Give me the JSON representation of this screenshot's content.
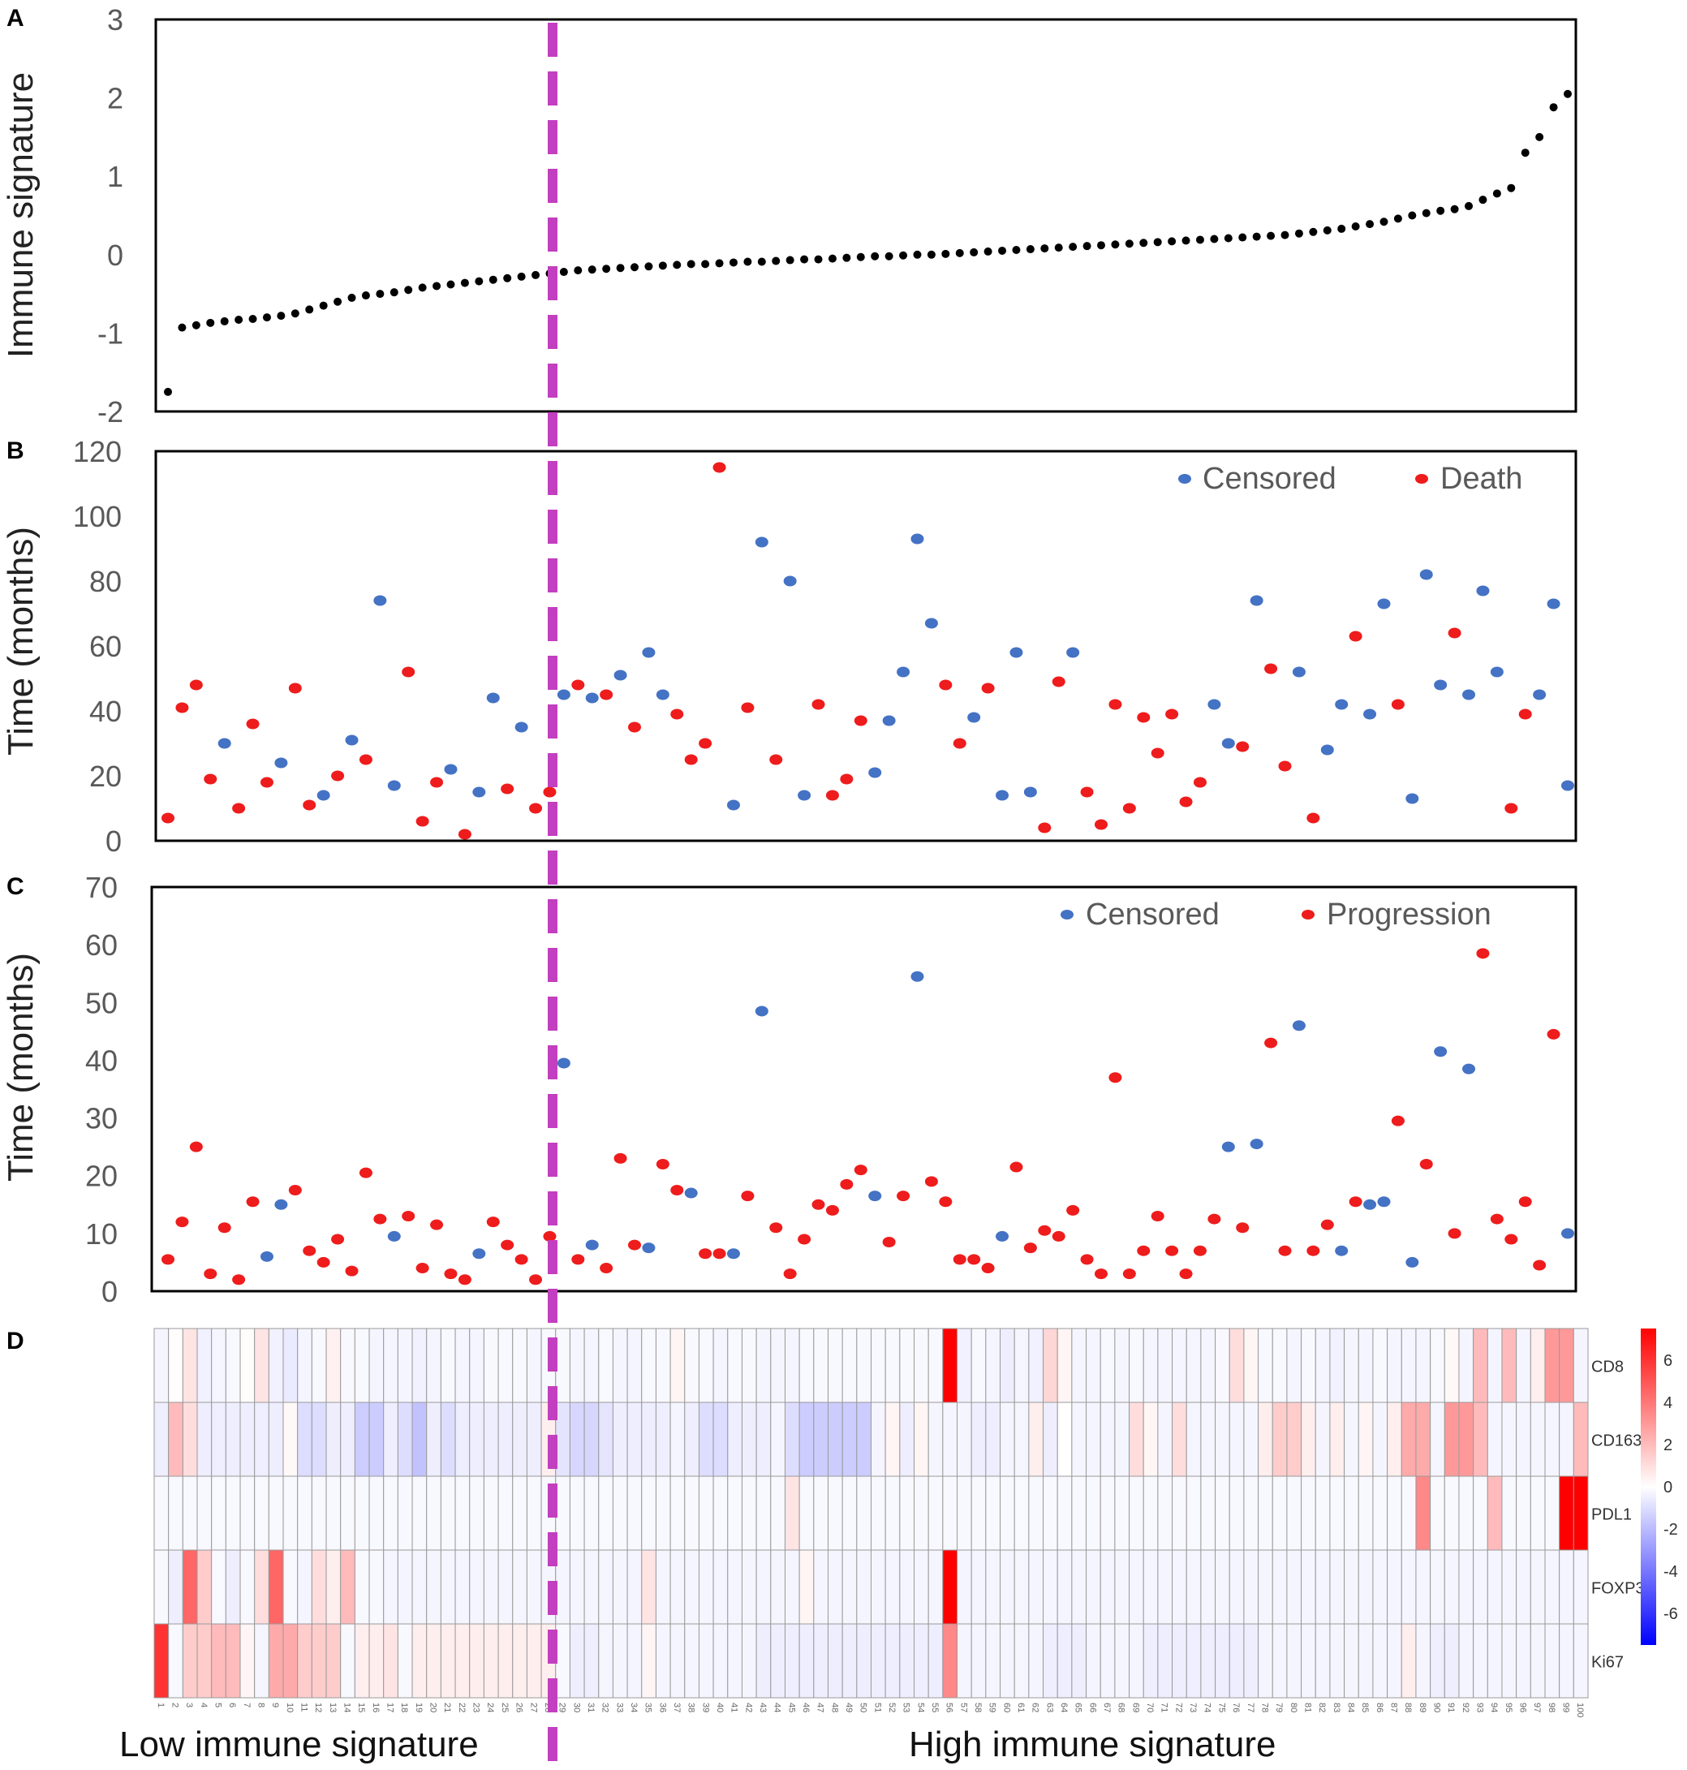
{
  "colors": {
    "censored": "#4472c4",
    "event": "#ee1c1c",
    "divider": "#c23fbf",
    "signature_point": "#000000",
    "heat_high": "#ff0000",
    "heat_mid": "#ffffff",
    "heat_low": "#0000ff"
  },
  "chart_data": [
    {
      "panel": "A",
      "type": "scatter",
      "ylabel": "Immune signature",
      "ylim": [
        -2,
        3
      ],
      "yticks": [
        "3",
        "2",
        "1",
        "0",
        "-1",
        "-2"
      ],
      "x": "patient rank 1-100",
      "values": [
        -1.75,
        -0.93,
        -0.9,
        -0.87,
        -0.85,
        -0.83,
        -0.82,
        -0.8,
        -0.78,
        -0.75,
        -0.7,
        -0.65,
        -0.6,
        -0.55,
        -0.52,
        -0.5,
        -0.48,
        -0.45,
        -0.42,
        -0.4,
        -0.38,
        -0.36,
        -0.34,
        -0.32,
        -0.3,
        -0.28,
        -0.26,
        -0.24,
        -0.22,
        -0.2,
        -0.19,
        -0.18,
        -0.17,
        -0.16,
        -0.15,
        -0.14,
        -0.13,
        -0.12,
        -0.12,
        -0.11,
        -0.1,
        -0.09,
        -0.09,
        -0.08,
        -0.07,
        -0.06,
        -0.06,
        -0.05,
        -0.04,
        -0.03,
        -0.02,
        -0.02,
        -0.01,
        0,
        0,
        0.01,
        0.02,
        0.03,
        0.04,
        0.05,
        0.06,
        0.07,
        0.08,
        0.09,
        0.1,
        0.11,
        0.12,
        0.13,
        0.14,
        0.15,
        0.16,
        0.17,
        0.18,
        0.19,
        0.2,
        0.21,
        0.22,
        0.23,
        0.24,
        0.25,
        0.27,
        0.29,
        0.31,
        0.33,
        0.36,
        0.39,
        0.42,
        0.46,
        0.5,
        0.53,
        0.56,
        0.58,
        0.62,
        0.7,
        0.78,
        0.85,
        1.3,
        1.5,
        1.88,
        2.05
      ]
    },
    {
      "panel": "B",
      "type": "scatter",
      "ylabel": "Time (months)",
      "ylim": [
        0,
        120
      ],
      "yticks": [
        "120",
        "100",
        "80",
        "60",
        "40",
        "20",
        "0"
      ],
      "legend": [
        "Censored",
        "Death"
      ],
      "legend_position": "top-right",
      "values": [
        7,
        41,
        48,
        19,
        30,
        10,
        36,
        18,
        24,
        47,
        11,
        14,
        20,
        31,
        25,
        74,
        17,
        52,
        6,
        18,
        22,
        2,
        15,
        44,
        16,
        35,
        10,
        15,
        45,
        48,
        44,
        45,
        51,
        35,
        58,
        45,
        39,
        25,
        30,
        115,
        11,
        41,
        92,
        25,
        80,
        14,
        42,
        14,
        19,
        37,
        21,
        37,
        52,
        93,
        67,
        48,
        30,
        38,
        47,
        14,
        58,
        15,
        4,
        49,
        58,
        15,
        5,
        42,
        10,
        38,
        27,
        39,
        12,
        18,
        42,
        30,
        29,
        74,
        53,
        23,
        52,
        7,
        28,
        42,
        63,
        39,
        73,
        42,
        13,
        82,
        48,
        64,
        45,
        77,
        52,
        10,
        39,
        45,
        73,
        17
      ],
      "status": [
        "E",
        "E",
        "E",
        "E",
        "C",
        "E",
        "E",
        "E",
        "C",
        "E",
        "E",
        "C",
        "E",
        "C",
        "E",
        "C",
        "C",
        "E",
        "E",
        "E",
        "C",
        "E",
        "C",
        "C",
        "E",
        "C",
        "E",
        "E",
        "C",
        "E",
        "C",
        "E",
        "C",
        "E",
        "C",
        "C",
        "E",
        "E",
        "E",
        "E",
        "C",
        "E",
        "C",
        "E",
        "C",
        "C",
        "E",
        "E",
        "E",
        "E",
        "C",
        "C",
        "C",
        "C",
        "C",
        "E",
        "E",
        "C",
        "E",
        "C",
        "C",
        "C",
        "E",
        "E",
        "C",
        "E",
        "E",
        "E",
        "E",
        "E",
        "E",
        "E",
        "E",
        "E",
        "C",
        "C",
        "E",
        "C",
        "E",
        "E",
        "C",
        "E",
        "C",
        "C",
        "E",
        "C",
        "C",
        "E",
        "C",
        "C",
        "C",
        "E",
        "C",
        "C",
        "C",
        "E",
        "E",
        "C",
        "C",
        "C"
      ]
    },
    {
      "panel": "C",
      "type": "scatter",
      "ylabel": "Time (months)",
      "ylim": [
        0,
        70
      ],
      "yticks": [
        "70",
        "60",
        "50",
        "40",
        "30",
        "20",
        "10",
        "0"
      ],
      "legend": [
        "Censored",
        "Progression"
      ],
      "legend_position": "top-right",
      "values": [
        5.5,
        12,
        25,
        3,
        11,
        2,
        15.5,
        6,
        15,
        17.5,
        7,
        5,
        9,
        3.5,
        20.5,
        12.5,
        9.5,
        13,
        4,
        11.5,
        3,
        2,
        6.5,
        12,
        8,
        5.5,
        2,
        9.5,
        39.5,
        5.5,
        8,
        4,
        23,
        8,
        7.5,
        22,
        17.5,
        17,
        6.5,
        6.5,
        6.5,
        16.5,
        48.5,
        11,
        3,
        9,
        15,
        14,
        18.5,
        21,
        16.5,
        8.5,
        16.5,
        54.5,
        19,
        15.5,
        5.5,
        5.5,
        4,
        9.5,
        21.5,
        7.5,
        10.5,
        9.5,
        14,
        5.5,
        3,
        37,
        3,
        7,
        13,
        7,
        3,
        7,
        12.5,
        25,
        11,
        25.5,
        43,
        7,
        46,
        7,
        11.5,
        7,
        15.5,
        15,
        15.5,
        29.5,
        5,
        22,
        41.5,
        10,
        38.5,
        58.5,
        12.5,
        9,
        15.5,
        4.5,
        44.5,
        10
      ],
      "status": [
        "E",
        "E",
        "E",
        "E",
        "E",
        "E",
        "E",
        "C",
        "C",
        "E",
        "E",
        "E",
        "E",
        "E",
        "E",
        "E",
        "C",
        "E",
        "E",
        "E",
        "E",
        "E",
        "C",
        "E",
        "E",
        "E",
        "E",
        "E",
        "C",
        "E",
        "C",
        "E",
        "E",
        "E",
        "C",
        "E",
        "E",
        "C",
        "E",
        "E",
        "C",
        "E",
        "C",
        "E",
        "E",
        "E",
        "E",
        "E",
        "E",
        "E",
        "C",
        "E",
        "E",
        "C",
        "E",
        "E",
        "E",
        "E",
        "E",
        "C",
        "E",
        "E",
        "E",
        "E",
        "E",
        "E",
        "E",
        "E",
        "E",
        "E",
        "E",
        "E",
        "E",
        "E",
        "E",
        "C",
        "E",
        "C",
        "E",
        "E",
        "C",
        "E",
        "E",
        "C",
        "E",
        "C",
        "C",
        "E",
        "C",
        "E",
        "C",
        "E",
        "C",
        "E",
        "E",
        "E",
        "E",
        "E",
        "E",
        "C"
      ]
    },
    {
      "panel": "D",
      "type": "heatmap",
      "rows": [
        "CD8",
        "CD163",
        "PDL1",
        "FOXP3",
        "Ki67"
      ],
      "columns": [
        "1",
        "2",
        "3",
        "4",
        "5",
        "6",
        "7",
        "8",
        "9",
        "10",
        "11",
        "12",
        "13",
        "14",
        "15",
        "16",
        "17",
        "18",
        "19",
        "20",
        "21",
        "22",
        "23",
        "24",
        "25",
        "26",
        "27",
        "28",
        "29",
        "30",
        "31",
        "32",
        "33",
        "34",
        "35",
        "36",
        "37",
        "38",
        "39",
        "40",
        "41",
        "42",
        "43",
        "44",
        "45",
        "46",
        "47",
        "48",
        "49",
        "50",
        "51",
        "52",
        "53",
        "54",
        "55",
        "56",
        "57",
        "58",
        "59",
        "60",
        "61",
        "62",
        "63",
        "64",
        "65",
        "66",
        "67",
        "68",
        "69",
        "70",
        "71",
        "72",
        "73",
        "74",
        "75",
        "76",
        "77",
        "78",
        "79",
        "80",
        "81",
        "82",
        "83",
        "84",
        "85",
        "86",
        "87",
        "88",
        "89",
        "90",
        "91",
        "92",
        "93",
        "94",
        "95",
        "96",
        "97",
        "98",
        "99",
        "100"
      ],
      "colorbar_ticks": [
        "6",
        "4",
        "2",
        "0",
        "-2",
        "-4",
        "-6"
      ],
      "values": [
        [
          -0.3,
          0.1,
          0.8,
          -0.4,
          -0.3,
          -0.2,
          0.1,
          0.8,
          -0.4,
          -0.6,
          -0.3,
          -0.2,
          0.4,
          -0.2,
          -0.2,
          -0.3,
          -0.3,
          -0.3,
          -0.4,
          -0.3,
          -0.2,
          -0.3,
          -0.3,
          -0.2,
          -0.2,
          -0.2,
          -0.3,
          -0.2,
          -0.2,
          -0.3,
          -0.3,
          -0.2,
          -0.3,
          -0.3,
          -0.2,
          -0.2,
          0.3,
          -0.2,
          -0.2,
          -0.3,
          -0.2,
          -0.2,
          -0.3,
          -0.3,
          -0.3,
          -0.2,
          -0.2,
          -0.2,
          -0.2,
          -0.2,
          -0.2,
          -0.2,
          -0.2,
          -0.2,
          -0.2,
          7.5,
          -0.4,
          -0.2,
          -0.3,
          -0.5,
          -0.3,
          -0.4,
          1.2,
          0.3,
          -0.3,
          -0.3,
          -0.2,
          -0.3,
          -0.2,
          -0.3,
          -0.3,
          -0.3,
          -0.3,
          -0.3,
          -0.2,
          1.0,
          0.3,
          -0.2,
          -0.2,
          -0.3,
          -0.2,
          -0.3,
          -0.4,
          -0.3,
          -0.3,
          -0.2,
          -0.3,
          -0.3,
          -0.3,
          -0.2,
          0.2,
          -0.3,
          2.0,
          -0.3,
          2.0,
          -0.3,
          0.5,
          3.0,
          3.0,
          -0.3
        ],
        [
          -0.5,
          2.0,
          1.0,
          -0.5,
          -0.5,
          -0.5,
          -0.5,
          -0.5,
          -0.5,
          0.2,
          -1.0,
          -1.0,
          -0.5,
          -0.5,
          -1.5,
          -1.5,
          -0.5,
          -1.0,
          -1.8,
          -0.5,
          -1.0,
          -0.5,
          -0.5,
          -0.5,
          -0.5,
          -0.5,
          -0.5,
          0.5,
          -0.8,
          -1.2,
          -1.2,
          -0.8,
          -0.5,
          -0.5,
          -0.5,
          -0.5,
          -0.3,
          -0.5,
          -1.0,
          -1.0,
          -0.5,
          -0.5,
          -0.5,
          -0.3,
          -1.0,
          -1.5,
          -1.5,
          -1.5,
          -1.5,
          -1.5,
          -0.3,
          0.3,
          -0.5,
          0.3,
          -0.3,
          -0.3,
          -0.3,
          -0.5,
          -0.5,
          -0.3,
          -0.3,
          0.5,
          -0.5,
          0,
          -0.3,
          -0.3,
          -0.3,
          -0.3,
          1.0,
          0.3,
          -0.3,
          1.0,
          -0.3,
          -0.3,
          -0.3,
          -0.3,
          -0.3,
          0.5,
          1.5,
          1.5,
          0.5,
          -0.3,
          0.5,
          -0.3,
          0.3,
          -0.3,
          0.5,
          2.5,
          2.5,
          -0.3,
          3.0,
          3.0,
          2.0,
          -0.3,
          -0.3,
          -0.3,
          -0.3,
          -0.3,
          -0.3,
          2.0
        ],
        [
          -0.2,
          -0.2,
          -0.2,
          -0.2,
          -0.2,
          -0.2,
          -0.2,
          -0.2,
          -0.2,
          -0.2,
          -0.2,
          -0.2,
          -0.2,
          -0.2,
          -0.2,
          -0.2,
          -0.2,
          -0.2,
          -0.2,
          -0.2,
          -0.2,
          -0.2,
          -0.2,
          -0.2,
          -0.2,
          -0.2,
          -0.2,
          -0.2,
          -0.2,
          -0.2,
          -0.2,
          -0.2,
          -0.2,
          -0.2,
          -0.2,
          -0.2,
          -0.2,
          -0.2,
          -0.2,
          -0.2,
          -0.2,
          -0.2,
          -0.2,
          -0.2,
          0.8,
          -0.2,
          -0.2,
          -0.2,
          -0.2,
          -0.2,
          -0.2,
          -0.2,
          -0.2,
          -0.2,
          -0.2,
          -0.2,
          -0.2,
          -0.2,
          -0.2,
          -0.2,
          -0.2,
          -0.2,
          -0.2,
          -0.2,
          -0.2,
          -0.2,
          -0.2,
          -0.2,
          -0.2,
          -0.2,
          -0.2,
          -0.2,
          -0.2,
          -0.2,
          -0.2,
          -0.2,
          -0.2,
          -0.2,
          -0.2,
          -0.2,
          -0.2,
          -0.2,
          -0.2,
          -0.2,
          -0.2,
          -0.2,
          -0.2,
          -0.2,
          3.5,
          -0.2,
          -0.2,
          -0.2,
          -0.2,
          2.0,
          -0.2,
          -0.2,
          -0.2,
          -0.2,
          7.5,
          7.5
        ],
        [
          -0.2,
          -0.5,
          4.5,
          1.5,
          -0.2,
          -0.5,
          -0.2,
          1.0,
          4.5,
          -0.2,
          -0.3,
          1.0,
          0.5,
          2.0,
          -0.2,
          -0.2,
          -0.3,
          -0.3,
          -0.3,
          -0.3,
          -0.3,
          -0.3,
          -0.3,
          -0.3,
          -0.3,
          -0.3,
          -0.3,
          -0.3,
          -0.3,
          -0.3,
          -0.3,
          -0.3,
          -0.3,
          -0.3,
          0.8,
          -0.3,
          -0.3,
          -0.3,
          -0.3,
          -0.3,
          -0.3,
          -0.3,
          -0.3,
          -0.3,
          -0.3,
          0.3,
          -0.3,
          -0.3,
          -0.3,
          -0.3,
          -0.3,
          -0.3,
          -0.3,
          -0.3,
          -0.3,
          7.5,
          -0.3,
          -0.3,
          -0.3,
          -0.3,
          -0.3,
          -0.3,
          -0.3,
          -0.3,
          -0.3,
          -0.3,
          -0.3,
          -0.3,
          -0.3,
          -0.3,
          -0.3,
          -0.3,
          -0.3,
          -0.3,
          -0.3,
          -0.3,
          -0.3,
          -0.3,
          -0.3,
          -0.3,
          -0.3,
          -0.3,
          -0.3,
          -0.3,
          -0.3,
          -0.3,
          -0.3,
          -0.3,
          -0.3,
          -0.3,
          -0.3,
          -0.3,
          -0.3,
          -0.3,
          -0.3,
          -0.3,
          -0.3,
          -0.3,
          -0.3,
          -0.3
        ],
        [
          6.0,
          -0.2,
          1.5,
          1.5,
          2.0,
          2.0,
          0.3,
          -0.3,
          2.5,
          2.5,
          1.5,
          1.5,
          1.5,
          -0.2,
          0.5,
          0.5,
          0.8,
          -0.2,
          0.5,
          0.5,
          0.5,
          0.5,
          0.5,
          0.5,
          0.5,
          0.5,
          0.5,
          0.5,
          -0.2,
          -0.5,
          -0.5,
          -0.3,
          -0.3,
          -0.3,
          0.3,
          -0.3,
          -0.3,
          -0.3,
          -0.3,
          -0.3,
          -0.3,
          -0.3,
          -0.5,
          -0.5,
          -0.5,
          -0.5,
          -0.5,
          -0.5,
          -0.5,
          -0.5,
          -0.5,
          -0.5,
          -0.5,
          -0.5,
          -0.5,
          3.5,
          -0.3,
          -0.3,
          -0.3,
          -0.3,
          -0.3,
          -0.3,
          -0.5,
          -0.5,
          -0.5,
          -0.3,
          -0.3,
          -0.3,
          -0.3,
          -0.5,
          -0.5,
          -0.5,
          -0.5,
          -0.5,
          -0.5,
          -0.5,
          -0.5,
          -0.3,
          -0.3,
          -0.3,
          -0.3,
          -0.3,
          -0.3,
          -0.3,
          -0.3,
          -0.3,
          -0.3,
          0.5,
          -0.3,
          -0.5,
          -0.5,
          -0.3,
          -0.3,
          -0.3,
          -0.3,
          -0.3,
          -0.3,
          -0.3,
          -0.3,
          -0.3
        ]
      ]
    }
  ],
  "labels": {
    "panel_a": "A",
    "panel_b": "B",
    "panel_c": "C",
    "panel_d": "D",
    "ylabel_a": "Immune signature",
    "ylabel_b": "Time (months)",
    "ylabel_c": "Time (months)",
    "legend_b_censored": "Censored",
    "legend_b_event": "Death",
    "legend_c_censored": "Censored",
    "legend_c_event": "Progression",
    "low_group": "Low immune signature",
    "high_group": "High immune signature"
  }
}
